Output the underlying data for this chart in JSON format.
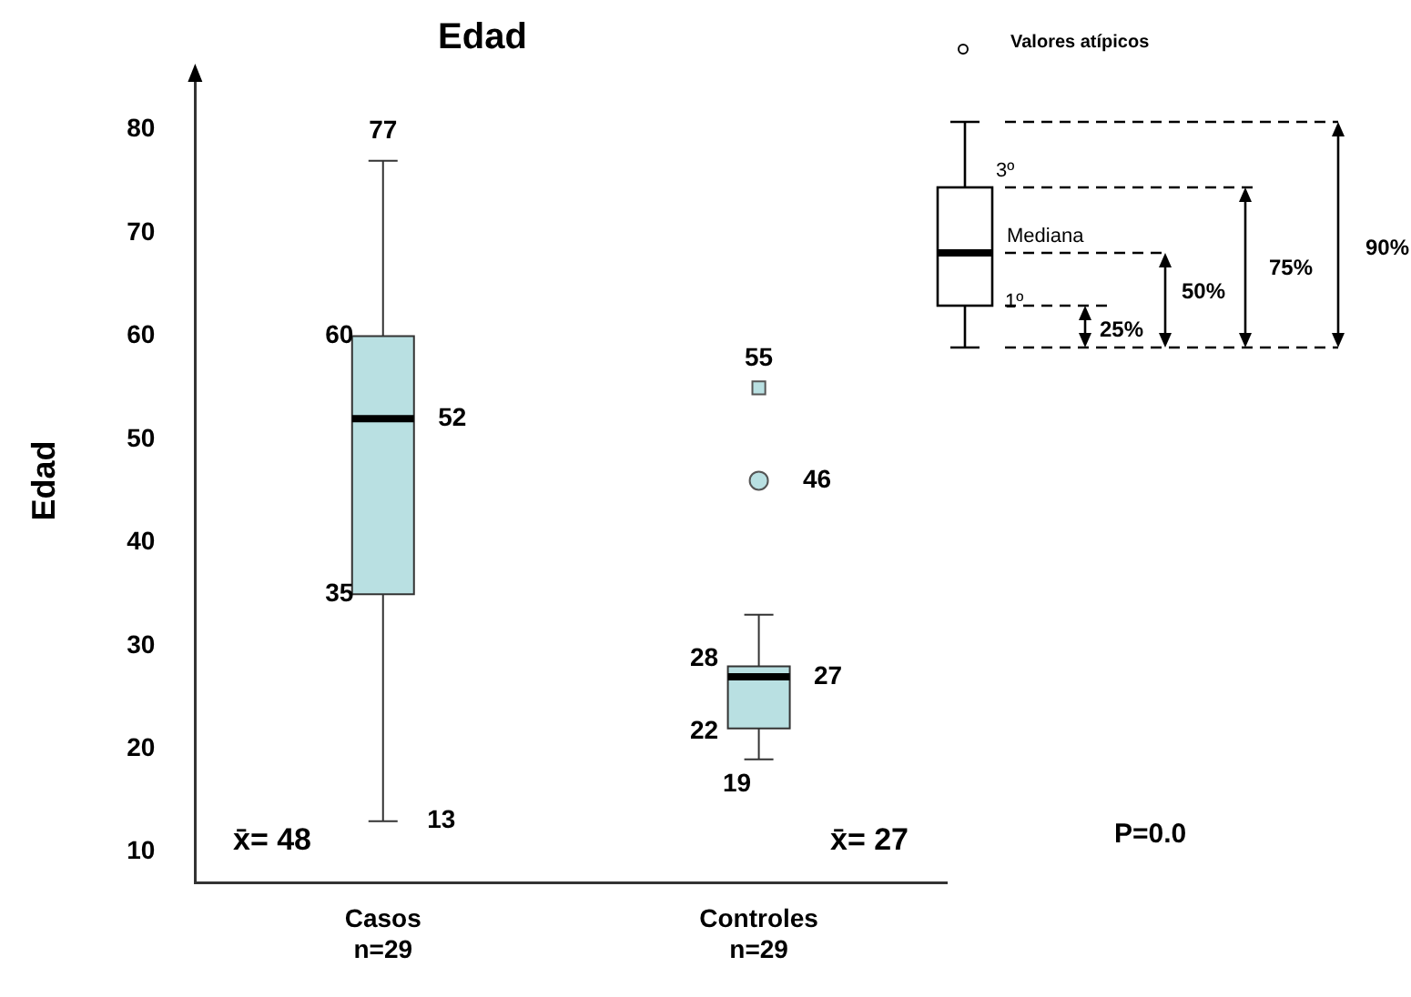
{
  "chart_data": {
    "type": "box",
    "title": "Edad",
    "ylabel": "Edad",
    "categories": [
      "Casos\nn=29",
      "Controles\nn=29"
    ],
    "series": [
      {
        "color": "#b9e0e2",
        "boxes": [
          {
            "low": 13,
            "q1": 35,
            "median": 52,
            "q3": 60,
            "high": 77
          },
          {
            "low": 19,
            "q1": 22,
            "median": 27,
            "q3": 28,
            "high": 33
          }
        ]
      },
      {
        "type": "scatter",
        "marker": "circle",
        "color": "#b9e0e2",
        "x": [
          "Controles\nn=29"
        ],
        "values": [
          46
        ]
      },
      {
        "type": "scatter",
        "marker": "square",
        "color": "#b9e0e2",
        "x": [
          "Controles\nn=29"
        ],
        "values": [
          55
        ]
      }
    ],
    "ylim": [
      7,
      85
    ],
    "yticks": [
      10,
      20,
      30,
      40,
      50,
      60,
      70,
      80
    ],
    "grid": false,
    "annotations": [
      {
        "text": "77",
        "x": "Casos\nn=29",
        "y": 77
      },
      {
        "text": "60",
        "x": "Casos\nn=29",
        "y": 60
      },
      {
        "text": "52",
        "x": "Casos\nn=29",
        "y": 52
      },
      {
        "text": "35",
        "x": "Casos\nn=29",
        "y": 35
      },
      {
        "text": "13",
        "x": "Casos\nn=29",
        "y": 13
      },
      {
        "text": "55",
        "x": "Controles\nn=29",
        "y": 55
      },
      {
        "text": "46",
        "x": "Controles\nn=29",
        "y": 46
      },
      {
        "text": "28",
        "x": "Controles\nn=29",
        "y": 28
      },
      {
        "text": "27",
        "x": "Controles\nn=29",
        "y": 27
      },
      {
        "text": "22",
        "x": "Controles\nn=29",
        "y": 22
      },
      {
        "text": "19",
        "x": "Controles\nn=29",
        "y": 19
      },
      "x̄= 48",
      "x̄= 27",
      "P=0.0",
      "Valores atípicos",
      "3º",
      "Mediana",
      "1º",
      "25%",
      "50%",
      "75%",
      "90%"
    ]
  }
}
